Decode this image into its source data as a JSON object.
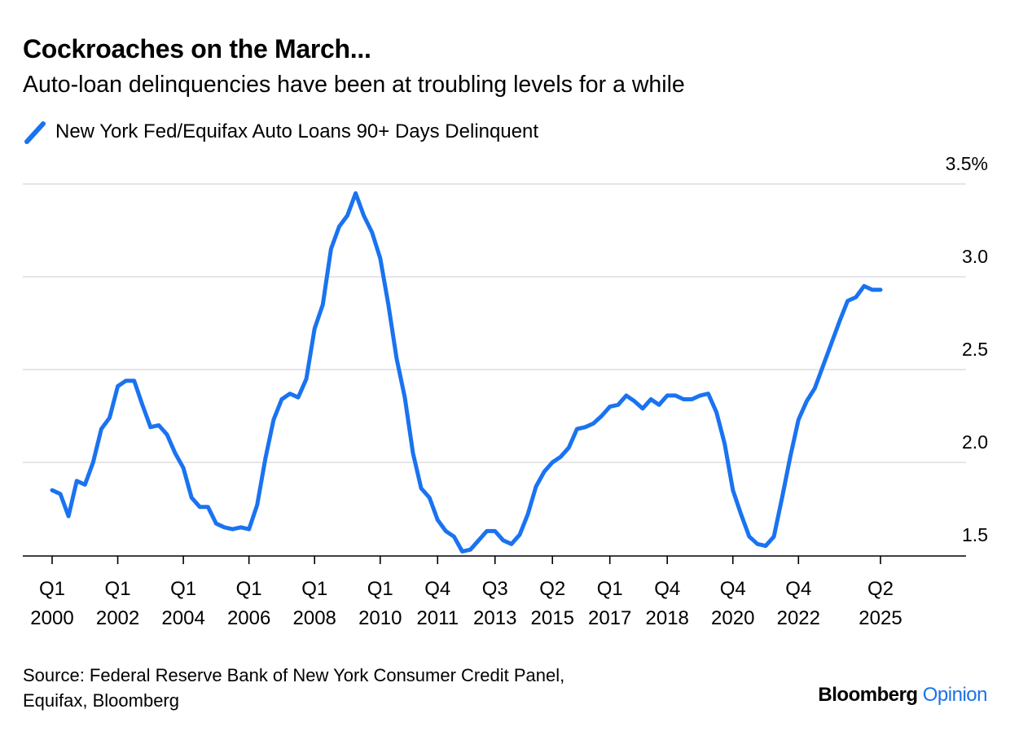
{
  "chart_data": {
    "type": "line",
    "title": "Cockroaches on the March...",
    "subtitle": "Auto-loan delinquencies have been at troubling levels for a while",
    "series": [
      {
        "name": "New York Fed/Equifax Auto Loans 90+ Days Delinquent",
        "color": "#1a73f0",
        "start": {
          "year": 2000,
          "quarter": 1
        },
        "values": [
          1.85,
          1.83,
          1.71,
          1.9,
          1.88,
          2.0,
          2.18,
          2.24,
          2.41,
          2.44,
          2.44,
          2.31,
          2.19,
          2.2,
          2.15,
          2.05,
          1.97,
          1.81,
          1.76,
          1.76,
          1.67,
          1.65,
          1.64,
          1.65,
          1.64,
          1.77,
          2.02,
          2.23,
          2.34,
          2.37,
          2.35,
          2.45,
          2.72,
          2.85,
          3.15,
          3.27,
          3.33,
          3.45,
          3.33,
          3.24,
          3.1,
          2.85,
          2.56,
          2.35,
          2.05,
          1.86,
          1.81,
          1.69,
          1.63,
          1.6,
          1.52,
          1.53,
          1.58,
          1.63,
          1.63,
          1.58,
          1.56,
          1.61,
          1.72,
          1.87,
          1.95,
          2.0,
          2.03,
          2.08,
          2.18,
          2.19,
          2.21,
          2.25,
          2.3,
          2.31,
          2.36,
          2.33,
          2.29,
          2.34,
          2.31,
          2.36,
          2.36,
          2.34,
          2.34,
          2.36,
          2.37,
          2.27,
          2.1,
          1.85,
          1.72,
          1.6,
          1.56,
          1.55,
          1.6,
          1.81,
          2.03,
          2.23,
          2.33,
          2.4,
          2.52,
          2.64,
          2.76,
          2.87,
          2.89,
          2.95,
          2.93,
          2.93
        ]
      }
    ],
    "y_ticks": [
      "3.5%",
      "3.0",
      "2.5",
      "2.0",
      "1.5"
    ],
    "y_tick_values": [
      3.5,
      3.0,
      2.5,
      2.0,
      1.5
    ],
    "ylim": [
      1.5,
      3.5
    ],
    "x_ticks": [
      {
        "quarter": "Q1",
        "year": "2000",
        "t": 2000.0
      },
      {
        "quarter": "Q1",
        "year": "2002",
        "t": 2002.0
      },
      {
        "quarter": "Q1",
        "year": "2004",
        "t": 2004.0
      },
      {
        "quarter": "Q1",
        "year": "2006",
        "t": 2006.0
      },
      {
        "quarter": "Q1",
        "year": "2008",
        "t": 2008.0
      },
      {
        "quarter": "Q1",
        "year": "2010",
        "t": 2010.0
      },
      {
        "quarter": "Q4",
        "year": "2011",
        "t": 2011.75
      },
      {
        "quarter": "Q3",
        "year": "2013",
        "t": 2013.5
      },
      {
        "quarter": "Q2",
        "year": "2015",
        "t": 2015.25
      },
      {
        "quarter": "Q1",
        "year": "2017",
        "t": 2017.0
      },
      {
        "quarter": "Q4",
        "year": "2018",
        "t": 2018.75
      },
      {
        "quarter": "Q4",
        "year": "2020",
        "t": 2020.75
      },
      {
        "quarter": "Q4",
        "year": "2022",
        "t": 2022.75
      },
      {
        "quarter": "Q2",
        "year": "2025",
        "t": 2025.25
      }
    ],
    "x_range": [
      1999.1,
      2027.3
    ],
    "grid": true,
    "y_axis_side": "right"
  },
  "source": {
    "line1": "Source: Federal Reserve Bank of New York Consumer Credit Panel,",
    "line2": "Equifax, Bloomberg"
  },
  "brand": {
    "name": "Bloomberg",
    "suffix": "Opinion"
  }
}
